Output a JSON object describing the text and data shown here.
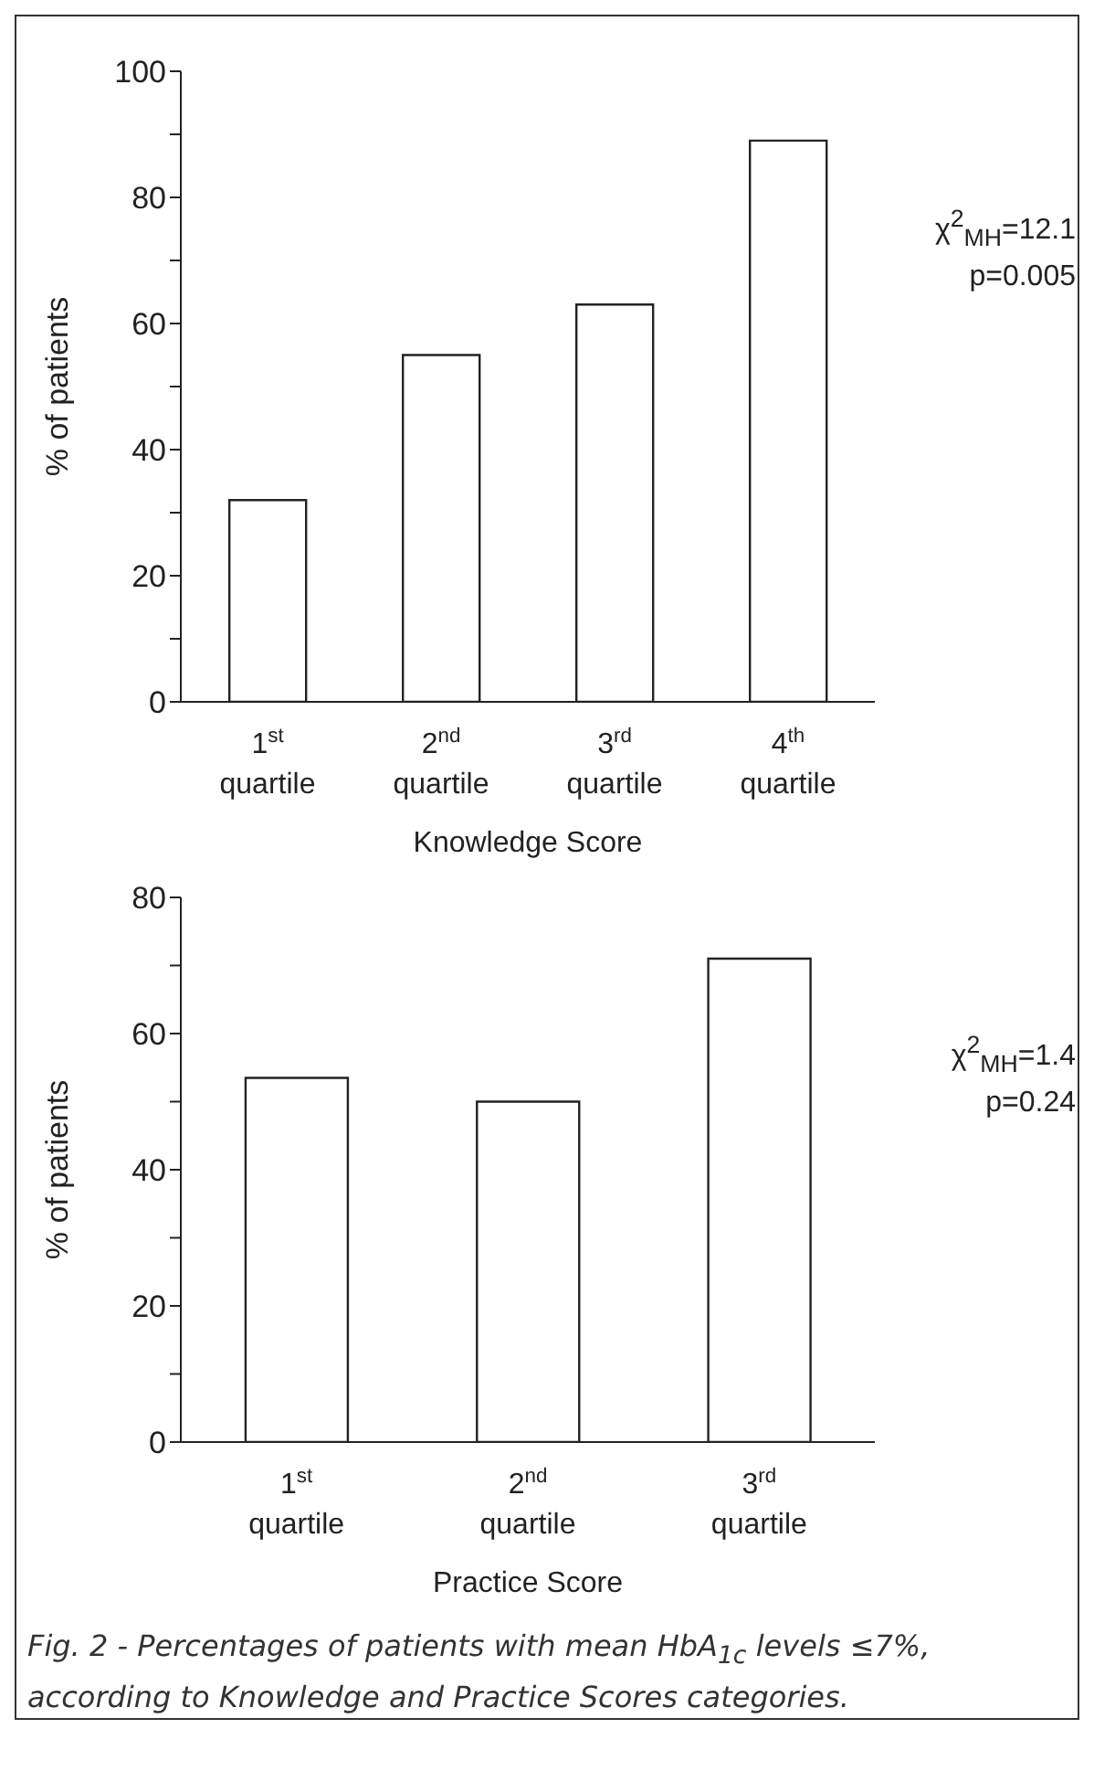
{
  "chart_data": [
    {
      "type": "bar",
      "xlabel": "Knowledge Score",
      "ylabel": "% of patients",
      "categories": [
        "1$^{st}$ quartile",
        "2$^{nd}$ quartile",
        "3$^{rd}$ quartile",
        "4$^{th}$ quartile"
      ],
      "values": [
        32,
        55,
        63,
        89
      ],
      "color": "#ffffff",
      "ylim": [
        0,
        100
      ],
      "yticks": [
        0,
        {
          "value": 10,
          "label": null
        },
        20,
        {
          "value": 30,
          "label": null
        },
        40,
        {
          "value": 50,
          "label": null
        },
        60,
        {
          "value": 70,
          "label": null
        },
        80,
        {
          "value": 90,
          "label": null
        },
        100
      ],
      "annotations": [
        "χ$^{2}$$_{MH}$=12.1",
        "p=0.005"
      ]
    },
    {
      "type": "bar",
      "xlabel": "Practice Score",
      "ylabel": "% of patients",
      "categories": [
        "1$^{st}$ quartile",
        "2$^{nd}$ quartile",
        "3$^{rd}$ quartile"
      ],
      "values": [
        53.5,
        50,
        71
      ],
      "color": "#ffffff",
      "ylim": [
        0,
        80
      ],
      "yticks": [
        0,
        {
          "value": 10,
          "label": null
        },
        20,
        {
          "value": 30,
          "label": null
        },
        40,
        {
          "value": 50,
          "label": null
        },
        60,
        {
          "value": 70,
          "label": null
        },
        80
      ],
      "annotations": [
        "χ$^{2}$$_{MH}$=1.4",
        "p=0.24",
        "Fig. 2 - Percentages of patients with mean HbA$_{1c}$ levels ≤7%, according to Knowledge and Practice Scores categories."
      ]
    }
  ]
}
